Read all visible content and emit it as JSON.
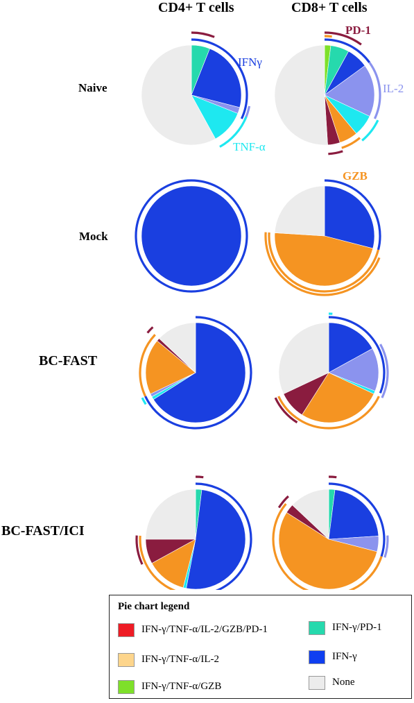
{
  "columns": [
    "CD4+ T cells",
    "CD8+ T cells"
  ],
  "rows": [
    "Naive",
    "Mock",
    "BC-FAST",
    "BC-FAST/ICI"
  ],
  "annotations": {
    "ifng": "IFNγ",
    "tnfa": "TNF-α",
    "pd1": "PD-1",
    "il2": "IL-2",
    "gzb": "GZB"
  },
  "legend": {
    "title": "Pie chart legend",
    "items": [
      {
        "label": "IFN-γ/TNF-α/IL-2/GZB/PD-1",
        "color": "#ee1c25"
      },
      {
        "label": "IFN-γ/TNF-α/IL-2",
        "color": "#fdd58c"
      },
      {
        "label": "IFN-γ/TNF-α/GZB",
        "color": "#7ee02a"
      },
      {
        "label": "IFN-γ/PD-1",
        "color": "#26d9ad"
      },
      {
        "label": "IFN-γ",
        "color": "#0f3ff0"
      },
      {
        "label": "None",
        "color": "#ececec"
      }
    ]
  },
  "colors": {
    "ifng": "#1a3fe0",
    "tnfa": "#1ee8f0",
    "il2": "#8b93ee",
    "gzb": "#f59422",
    "pd1": "#8a1c3f",
    "none": "#ececec",
    "ifng_pd1": "#26d9ad",
    "ifng_tnf_gzb": "#7ee02a"
  },
  "chart_data": [
    {
      "type": "pie",
      "title": "Naive CD4+ T cells",
      "slices": [
        {
          "category": "IFN-γ/PD-1",
          "value": 6,
          "color": "#26d9ad"
        },
        {
          "category": "IFN-γ",
          "value": 23,
          "color": "#1a3fe0"
        },
        {
          "category": "IFN-γ/IL-2",
          "value": 2,
          "color": "#8b93ee"
        },
        {
          "category": "IFN-γ/TNF-α",
          "value": 11,
          "color": "#1ee8f0"
        },
        {
          "category": "None",
          "value": 58,
          "color": "#ececec"
        }
      ],
      "arcs": [
        {
          "marker": "PD-1",
          "start": 0.0,
          "end": 0.06,
          "ring": 3
        },
        {
          "marker": "IFNγ",
          "start": 0.0,
          "end": 0.32,
          "ring": 1
        },
        {
          "marker": "IL-2",
          "start": 0.28,
          "end": 0.32,
          "ring": 2
        },
        {
          "marker": "TNF-α",
          "start": 0.31,
          "end": 0.42,
          "ring": 2
        }
      ]
    },
    {
      "type": "pie",
      "title": "Naive CD8+ T cells",
      "slices": [
        {
          "category": "IFN-γ/TNF-α/GZB",
          "value": 2,
          "color": "#7ee02a"
        },
        {
          "category": "IFN-γ/PD-1",
          "value": 6,
          "color": "#26d9ad"
        },
        {
          "category": "IFN-γ",
          "value": 7,
          "color": "#1a3fe0"
        },
        {
          "category": "IFN-γ/IL-2",
          "value": 17,
          "color": "#8b93ee"
        },
        {
          "category": "IFN-γ/TNF-α",
          "value": 7,
          "color": "#1ee8f0"
        },
        {
          "category": "IFN-γ/GZB",
          "value": 6,
          "color": "#f59422"
        },
        {
          "category": "IFN-γ/PD-1/GZB",
          "value": 4,
          "color": "#8a1c3f"
        },
        {
          "category": "None",
          "value": 51,
          "color": "#ececec"
        }
      ],
      "arcs": [
        {
          "marker": "GZB",
          "start": 0.0,
          "end": 0.02,
          "ring": 2
        },
        {
          "marker": "PD-1",
          "start": 0.0,
          "end": 0.1,
          "ring": 3
        },
        {
          "marker": "IFNγ",
          "start": 0.0,
          "end": 0.15,
          "ring": 1
        },
        {
          "marker": "IL-2",
          "start": 0.15,
          "end": 0.32,
          "ring": 1
        },
        {
          "marker": "TNF-α",
          "start": 0.32,
          "end": 0.39,
          "ring": 2
        },
        {
          "marker": "GZB",
          "start": 0.39,
          "end": 0.45,
          "ring": 1
        },
        {
          "marker": "PD-1",
          "start": 0.45,
          "end": 0.49,
          "ring": 2
        }
      ]
    },
    {
      "type": "pie",
      "title": "Mock CD4+ T cells",
      "slices": [
        {
          "category": "IFN-γ",
          "value": 100,
          "color": "#1a3fe0"
        }
      ],
      "arcs": [
        {
          "marker": "IFNγ",
          "start": 0.0,
          "end": 1.0,
          "ring": 1
        }
      ]
    },
    {
      "type": "pie",
      "title": "Mock CD8+ T cells",
      "slices": [
        {
          "category": "IFN-γ",
          "value": 29,
          "color": "#1a3fe0"
        },
        {
          "category": "IFN-γ/GZB",
          "value": 47,
          "color": "#f59422"
        },
        {
          "category": "None",
          "value": 24,
          "color": "#ececec"
        }
      ],
      "arcs": [
        {
          "marker": "IFNγ",
          "start": 0.0,
          "end": 0.29,
          "ring": 1
        },
        {
          "marker": "GZB",
          "start": 0.29,
          "end": 0.76,
          "ring": 1
        },
        {
          "marker": "GZB",
          "start": 0.31,
          "end": 0.76,
          "ring": 2
        }
      ]
    },
    {
      "type": "pie",
      "title": "BC-FAST CD4+ T cells",
      "slices": [
        {
          "category": "IFN-γ",
          "value": 66,
          "color": "#1a3fe0"
        },
        {
          "category": "IFN-γ/TNF-α",
          "value": 1,
          "color": "#1ee8f0"
        },
        {
          "category": "IFN-γ/IL-2",
          "value": 1,
          "color": "#8b93ee"
        },
        {
          "category": "IFN-γ/GZB",
          "value": 18,
          "color": "#f59422"
        },
        {
          "category": "IFN-γ/PD-1/GZB",
          "value": 1,
          "color": "#8a1c3f"
        },
        {
          "category": "None",
          "value": 13,
          "color": "#ececec"
        }
      ],
      "arcs": [
        {
          "marker": "IFNγ",
          "start": 0.0,
          "end": 0.68,
          "ring": 1
        },
        {
          "marker": "TNF-α",
          "start": 0.66,
          "end": 0.68,
          "ring": 2
        },
        {
          "marker": "GZB",
          "start": 0.68,
          "end": 0.87,
          "ring": 1
        },
        {
          "marker": "PD-1",
          "start": 0.86,
          "end": 0.88,
          "ring": 3
        }
      ]
    },
    {
      "type": "pie",
      "title": "BC-FAST CD8+ T cells",
      "slices": [
        {
          "category": "IFN-γ",
          "value": 17,
          "color": "#1a3fe0"
        },
        {
          "category": "IFN-γ/IL-2",
          "value": 14,
          "color": "#8b93ee"
        },
        {
          "category": "IFN-γ/TNF-α",
          "value": 1,
          "color": "#1ee8f0"
        },
        {
          "category": "IFN-γ/GZB",
          "value": 27,
          "color": "#f59422"
        },
        {
          "category": "IFN-γ/PD-1/GZB",
          "value": 9,
          "color": "#8a1c3f"
        },
        {
          "category": "None",
          "value": 32,
          "color": "#ececec"
        }
      ],
      "arcs": [
        {
          "marker": "TNF-α",
          "start": 0.0,
          "end": 0.01,
          "ring": 2
        },
        {
          "marker": "IFNγ",
          "start": 0.0,
          "end": 0.31,
          "ring": 1
        },
        {
          "marker": "IL-2",
          "start": 0.17,
          "end": 0.32,
          "ring": 2
        },
        {
          "marker": "GZB",
          "start": 0.32,
          "end": 0.68,
          "ring": 1
        },
        {
          "marker": "PD-1",
          "start": 0.59,
          "end": 0.68,
          "ring": 2
        }
      ]
    },
    {
      "type": "pie",
      "title": "BC-FAST/ICI CD4+ T cells",
      "slices": [
        {
          "category": "IFN-γ/PD-1",
          "value": 2,
          "color": "#26d9ad"
        },
        {
          "category": "IFN-γ",
          "value": 51,
          "color": "#1a3fe0"
        },
        {
          "category": "IFN-γ/TNF-α",
          "value": 1,
          "color": "#1ee8f0"
        },
        {
          "category": "IFN-γ/GZB",
          "value": 13,
          "color": "#f59422"
        },
        {
          "category": "IFN-γ/PD-1/GZB",
          "value": 8,
          "color": "#8a1c3f"
        },
        {
          "category": "None",
          "value": 25,
          "color": "#ececec"
        }
      ],
      "arcs": [
        {
          "marker": "PD-1",
          "start": 0.0,
          "end": 0.02,
          "ring": 3
        },
        {
          "marker": "IFNγ",
          "start": 0.0,
          "end": 0.54,
          "ring": 1
        },
        {
          "marker": "TNF-α",
          "start": 0.53,
          "end": 0.55,
          "ring": 2
        },
        {
          "marker": "GZB",
          "start": 0.54,
          "end": 0.76,
          "ring": 1
        },
        {
          "marker": "PD-1",
          "start": 0.68,
          "end": 0.76,
          "ring": 2
        }
      ]
    },
    {
      "type": "pie",
      "title": "BC-FAST/ICI CD8+ T cells",
      "slices": [
        {
          "category": "IFN-γ/PD-1",
          "value": 2,
          "color": "#26d9ad"
        },
        {
          "category": "IFN-γ",
          "value": 22,
          "color": "#1a3fe0"
        },
        {
          "category": "IFN-γ/IL-2",
          "value": 5,
          "color": "#8b93ee"
        },
        {
          "category": "IFN-γ/GZB",
          "value": 55,
          "color": "#f59422"
        },
        {
          "category": "IFN-γ/PD-1/GZB",
          "value": 3,
          "color": "#8a1c3f"
        },
        {
          "category": "None",
          "value": 13,
          "color": "#ececec"
        }
      ],
      "arcs": [
        {
          "marker": "PD-1",
          "start": 0.0,
          "end": 0.02,
          "ring": 3
        },
        {
          "marker": "IFNγ",
          "start": 0.0,
          "end": 0.3,
          "ring": 1
        },
        {
          "marker": "IL-2",
          "start": 0.24,
          "end": 0.3,
          "ring": 2
        },
        {
          "marker": "GZB",
          "start": 0.3,
          "end": 0.86,
          "ring": 1
        },
        {
          "marker": "PD-1",
          "start": 0.84,
          "end": 0.88,
          "ring": 2
        }
      ]
    }
  ]
}
